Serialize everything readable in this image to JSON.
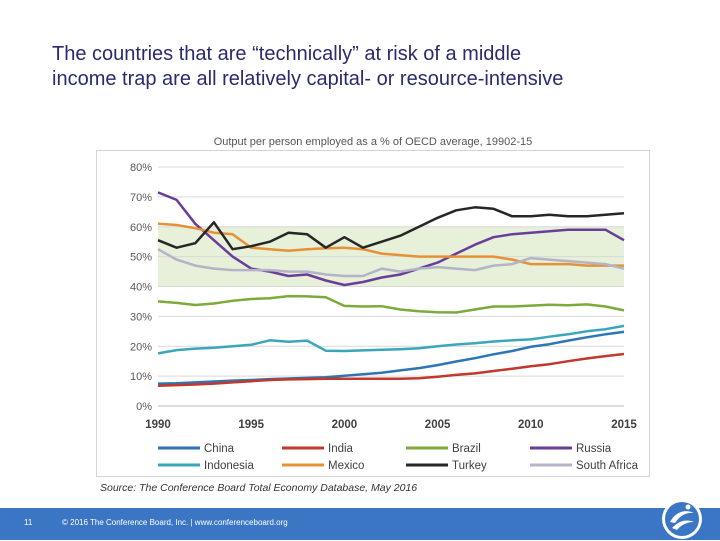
{
  "slide": {
    "title_line1": "The countries that are “technically” at risk of a middle",
    "title_line2": "income trap are all relatively capital- or resource-intensive",
    "source": "Source: The Conference Board Total Economy Database, May 2016",
    "page_number": "11",
    "copyright": "© 2016 The Conference Board, Inc.  |  www.conferenceboard.org"
  },
  "colors": {
    "footer": "#3a76c4",
    "title": "#2a2a6e",
    "band": "#e7f0d8"
  },
  "icons": {
    "logo": "conference-board-logo-icon"
  },
  "chart_data": {
    "type": "line",
    "title": "Output per person employed as a % of OECD average, 19902-15",
    "ylim": [
      0,
      80
    ],
    "xlim": [
      1990,
      2015
    ],
    "y_ticks": [
      0,
      10,
      20,
      30,
      40,
      50,
      60,
      70,
      80
    ],
    "y_tick_labels": [
      "0%",
      "10%",
      "20%",
      "30%",
      "40%",
      "50%",
      "60%",
      "70%",
      "80%"
    ],
    "x_ticks": [
      1990,
      1995,
      2000,
      2005,
      2010,
      2015
    ],
    "x_tick_labels": [
      "1990",
      "1995",
      "2000",
      "2005",
      "2010",
      "2015"
    ],
    "grid": "horizontal",
    "shaded_band": [
      40,
      60
    ],
    "legend_position": "bottom",
    "x": [
      1990,
      1991,
      1992,
      1993,
      1994,
      1995,
      1996,
      1997,
      1998,
      1999,
      2000,
      2001,
      2002,
      2003,
      2004,
      2005,
      2006,
      2007,
      2008,
      2009,
      2010,
      2011,
      2012,
      2013,
      2014,
      2015
    ],
    "series": [
      {
        "name": "China",
        "color": "#2e75b6",
        "values": [
          7.5,
          7.6,
          7.9,
          8.2,
          8.5,
          8.7,
          9,
          9.2,
          9.4,
          9.6,
          10.1,
          10.6,
          11.1,
          11.9,
          12.7,
          13.7,
          14.9,
          16,
          17.3,
          18.4,
          19.8,
          20.7,
          21.9,
          23,
          24,
          24.8
        ]
      },
      {
        "name": "India",
        "color": "#c0392b",
        "values": [
          6.8,
          7,
          7.2,
          7.5,
          7.9,
          8.3,
          8.7,
          8.9,
          9,
          9.1,
          9.1,
          9.1,
          9.1,
          9.1,
          9.3,
          9.8,
          10.4,
          10.9,
          11.7,
          12.5,
          13.3,
          14,
          15,
          15.9,
          16.7,
          17.4
        ]
      },
      {
        "name": "Brazil",
        "color": "#7dab3a",
        "values": [
          35,
          34.5,
          33.8,
          34.3,
          35.2,
          35.8,
          36.1,
          36.8,
          36.7,
          36.4,
          33.5,
          33.3,
          33.4,
          32.3,
          31.7,
          31.4,
          31.3,
          32.3,
          33.3,
          33.3,
          33.6,
          33.9,
          33.7,
          34,
          33.3,
          32
        ]
      },
      {
        "name": "Russia",
        "color": "#6a3d9a",
        "values": [
          71.5,
          69,
          61,
          55.5,
          50,
          46,
          45,
          43.5,
          44,
          42,
          40.5,
          41.5,
          43,
          44,
          46,
          48,
          51,
          54,
          56.5,
          57.5,
          58,
          58.5,
          59,
          59,
          59,
          55.5
        ]
      },
      {
        "name": "Indonesia",
        "color": "#3aa6b9",
        "values": [
          17.6,
          18.7,
          19.2,
          19.5,
          20,
          20.5,
          22,
          21.5,
          21.9,
          18.5,
          18.4,
          18.6,
          18.8,
          19,
          19.3,
          20,
          20.6,
          21,
          21.6,
          22,
          22.3,
          23.2,
          24,
          25,
          25.7,
          26.8
        ]
      },
      {
        "name": "Mexico",
        "color": "#e69138",
        "values": [
          61,
          60.6,
          59.5,
          58,
          57.5,
          53,
          52.5,
          52,
          52.5,
          52.8,
          53,
          52.5,
          51,
          50.5,
          50,
          50,
          50,
          50,
          50,
          49,
          47.5,
          47.5,
          47.5,
          47,
          47,
          47
        ]
      },
      {
        "name": "Turkey",
        "color": "#262626",
        "values": [
          55.5,
          53,
          54.5,
          61.5,
          52.5,
          53.5,
          55,
          58,
          57.5,
          53,
          56.5,
          53,
          55,
          57,
          60,
          63,
          65.5,
          66.5,
          66,
          63.5,
          63.5,
          64,
          63.5,
          63.5,
          64,
          64.5
        ]
      },
      {
        "name": "South Africa",
        "color": "#b4b4c8",
        "values": [
          52.5,
          49,
          47,
          46,
          45.5,
          45.5,
          45.5,
          45,
          45,
          44,
          43.5,
          43.5,
          46,
          45,
          46,
          46.5,
          46,
          45.5,
          47,
          47.5,
          49.5,
          49,
          48.5,
          48,
          47.5,
          46
        ]
      }
    ]
  }
}
